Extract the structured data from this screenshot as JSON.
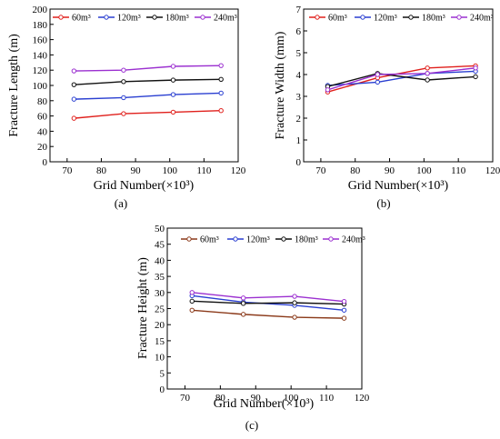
{
  "figure": {
    "panel_labels": [
      "(a)",
      "(b)",
      "(c)"
    ]
  },
  "chart_data": [
    {
      "type": "line",
      "panel": "(a)",
      "xlabel": "Grid Number(×10³)",
      "ylabel": "Fracture Length (m)",
      "xlim": [
        65,
        120
      ],
      "ylim": [
        0,
        200
      ],
      "xticks": [
        70,
        80,
        90,
        100,
        110,
        120
      ],
      "yticks": [
        0,
        20,
        40,
        60,
        80,
        100,
        120,
        140,
        160,
        180,
        200
      ],
      "legend_position": "top",
      "x": [
        72,
        86.5,
        101,
        115
      ],
      "series": [
        {
          "name": "60m³",
          "color": "#e0201c",
          "values": [
            57,
            63,
            65,
            67
          ]
        },
        {
          "name": "120m³",
          "color": "#2a3fd1",
          "values": [
            82,
            84,
            88,
            90
          ]
        },
        {
          "name": "180m³",
          "color": "#111111",
          "values": [
            101,
            105,
            107,
            108
          ]
        },
        {
          "name": "240m³",
          "color": "#9b30d0",
          "values": [
            119,
            120,
            125,
            126
          ]
        }
      ]
    },
    {
      "type": "line",
      "panel": "(b)",
      "xlabel": "Grid Number(×10³)",
      "ylabel": "Fracture Width (mm)",
      "xlim": [
        65,
        120
      ],
      "ylim": [
        0,
        7
      ],
      "xticks": [
        70,
        80,
        90,
        100,
        110,
        120
      ],
      "yticks": [
        0,
        1,
        2,
        3,
        4,
        5,
        6,
        7
      ],
      "legend_position": "top",
      "x": [
        72,
        86.5,
        101,
        115
      ],
      "series": [
        {
          "name": "60m³",
          "color": "#e0201c",
          "values": [
            3.2,
            3.85,
            4.3,
            4.4
          ]
        },
        {
          "name": "120m³",
          "color": "#2a3fd1",
          "values": [
            3.5,
            3.65,
            4.05,
            4.15
          ]
        },
        {
          "name": "180m³",
          "color": "#111111",
          "values": [
            3.45,
            4.05,
            3.75,
            3.9
          ]
        },
        {
          "name": "240m³",
          "color": "#9b30d0",
          "values": [
            3.3,
            4.0,
            4.05,
            4.3
          ]
        }
      ]
    },
    {
      "type": "line",
      "panel": "(c)",
      "xlabel": "Grid Number(×10³)",
      "ylabel": "Fracture Height (m)",
      "xlim": [
        65,
        120
      ],
      "ylim": [
        0,
        50
      ],
      "xticks": [
        70,
        80,
        90,
        100,
        110,
        120
      ],
      "yticks": [
        0,
        5,
        10,
        15,
        20,
        25,
        30,
        35,
        40,
        45,
        50
      ],
      "legend_position": "top",
      "x": [
        72,
        86.5,
        101,
        115
      ],
      "series": [
        {
          "name": "60m³",
          "color": "#8b3a1a",
          "values": [
            24.5,
            23.2,
            22.3,
            22.0
          ]
        },
        {
          "name": "120m³",
          "color": "#2a3fd1",
          "values": [
            29.0,
            27.0,
            26.0,
            24.5
          ]
        },
        {
          "name": "180m³",
          "color": "#111111",
          "values": [
            27.3,
            26.6,
            26.8,
            26.4
          ]
        },
        {
          "name": "240m³",
          "color": "#9b30d0",
          "values": [
            30.0,
            28.3,
            28.8,
            27.2
          ]
        }
      ]
    }
  ]
}
